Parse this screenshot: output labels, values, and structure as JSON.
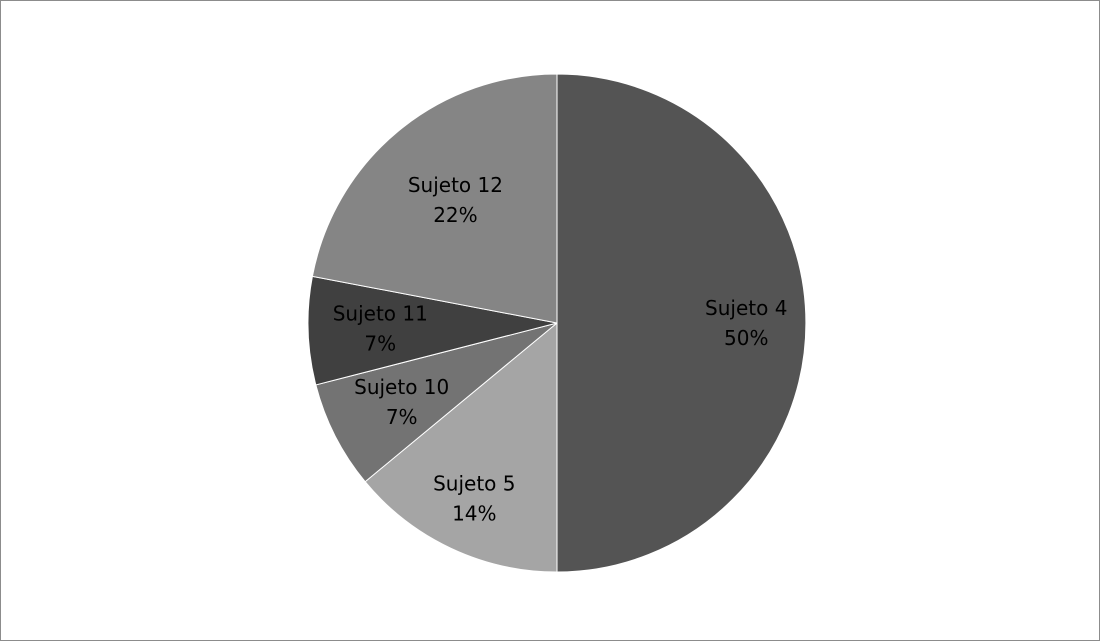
{
  "chart_data": {
    "type": "pie",
    "categories": [
      "Sujeto 4",
      "Sujeto 5",
      "Sujeto 10",
      "Sujeto 11",
      "Sujeto 12"
    ],
    "values": [
      50,
      14,
      7,
      7,
      22
    ],
    "value_labels": [
      "50%",
      "14%",
      "7%",
      "7%",
      "22%"
    ],
    "colors": [
      "#545454",
      "#a5a5a5",
      "#737373",
      "#404040",
      "#858585"
    ],
    "legend": "none"
  }
}
